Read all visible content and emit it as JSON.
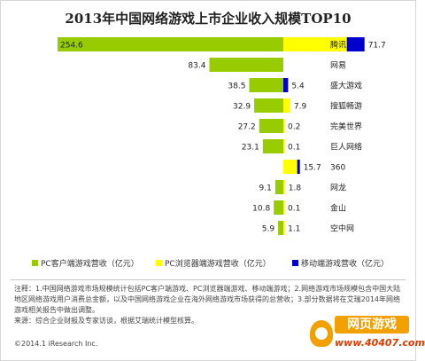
{
  "chart_data": {
    "type": "bar",
    "orientation": "horizontal-stacked-diverging",
    "title": "2013年中国网络游戏上市企业收入规模TOP10",
    "categories": [
      "腾讯",
      "网易",
      "盛大游戏",
      "搜狐畅游",
      "完美世界",
      "巨人网络",
      "360",
      "网龙",
      "金山",
      "空中网"
    ],
    "series": [
      {
        "name": "PC客户端游戏营收（亿元）",
        "color": "#99cc00",
        "values": [
          254.6,
          83.4,
          38.5,
          32.9,
          27.2,
          23.1,
          0,
          9.1,
          10.8,
          5.9
        ]
      },
      {
        "name": "PC浏览器端游戏营收（亿元）",
        "color": "#ffff00",
        "values": [
          71.7,
          0,
          0,
          7.9,
          0.2,
          0.1,
          15.7,
          1.8,
          0.1,
          1.1
        ]
      },
      {
        "name": "移动端游戏营收（亿元）",
        "color": "#0000cc",
        "values": [
          20,
          0,
          5.4,
          0,
          0,
          0,
          3,
          0,
          0,
          0
        ]
      }
    ],
    "left_labels": [
      "254.6",
      "83.4",
      "38.5",
      "32.9",
      "27.2",
      "23.1",
      "",
      "9.1",
      "10.8",
      "5.9"
    ],
    "right_labels": [
      "71.7",
      "",
      "5.4",
      "7.9",
      "0.2",
      "0.1",
      "15.7",
      "1.8",
      "0.1",
      "1.1"
    ],
    "legend_position": "bottom",
    "grid": false
  },
  "notes": {
    "note": "注释：1.中国网络游戏市场规模统计包括PC客户端游戏、PC浏览器端游戏、移动端游戏；2.网络游戏市场规模包含中国大陆地区网络游戏用户消费总金额，以及中国网络游戏企业在海外网络游戏市场获得的总营收；3.部分数据将在艾瑞2014年网络游戏相关报告中做出调整。",
    "source": "来源：综合企业财报及专家访谈，根据艾瑞统计模型核算。",
    "copyright": "©2014.1 iResearch Inc."
  },
  "watermark": {
    "top": "网页游戏",
    "bottom": "www.40407.com"
  }
}
